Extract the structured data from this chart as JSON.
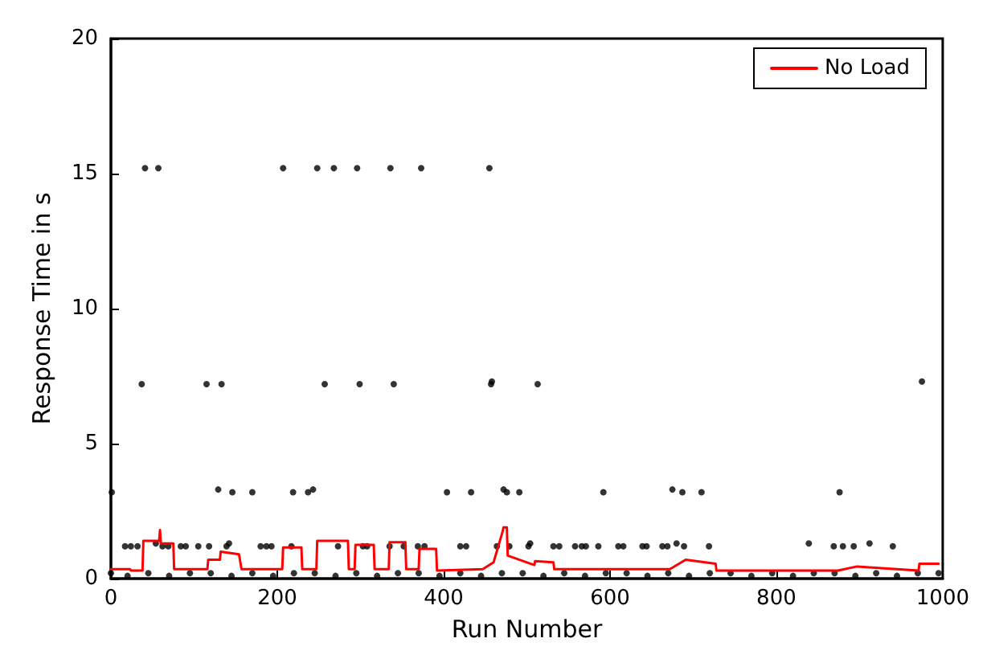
{
  "chart_data": {
    "type": "scatter",
    "xlabel": "Run Number",
    "ylabel": "Response Time in s",
    "xlim": [
      0,
      1000
    ],
    "xticks": [
      0,
      200,
      400,
      600,
      800,
      1000
    ],
    "ylim": [
      0,
      20
    ],
    "yticks": [
      0,
      5,
      10,
      15,
      20
    ],
    "grid": false,
    "legend": "top right",
    "series": [
      {
        "marker": "circle",
        "color": "#000000",
        "x": [
          41,
          57,
          207,
          248,
          268,
          296,
          336,
          373,
          455,
          37,
          115,
          133,
          257,
          299,
          340,
          457,
          458,
          513,
          975,
          1,
          129,
          146,
          170,
          219,
          237,
          243,
          404,
          433,
          472,
          476,
          491,
          592,
          675,
          687,
          710,
          876,
          17,
          24,
          32,
          54,
          62,
          69,
          84,
          90,
          105,
          118,
          139,
          142,
          180,
          187,
          193,
          217,
          273,
          303,
          308,
          335,
          352,
          369,
          377,
          420,
          427,
          464,
          479,
          502,
          504,
          532,
          539,
          558,
          566,
          571,
          586,
          610,
          616,
          639,
          644,
          663,
          669,
          680,
          689,
          719,
          839,
          869,
          880,
          893,
          912,
          940,
          0,
          20,
          45,
          70,
          95,
          120,
          145,
          170,
          195,
          220,
          245,
          270,
          295,
          320,
          345,
          370,
          395,
          420,
          445,
          470,
          495,
          520,
          545,
          570,
          595,
          620,
          645,
          670,
          695,
          720,
          745,
          770,
          795,
          820,
          845,
          870,
          895,
          920,
          945,
          970,
          995
        ],
        "values": [
          15.2,
          15.2,
          15.2,
          15.2,
          15.2,
          15.2,
          15.2,
          15.2,
          15.2,
          7.2,
          7.2,
          7.2,
          7.2,
          7.2,
          7.2,
          7.2,
          7.3,
          7.2,
          7.3,
          3.2,
          3.3,
          3.2,
          3.2,
          3.2,
          3.2,
          3.3,
          3.2,
          3.2,
          3.3,
          3.2,
          3.2,
          3.2,
          3.3,
          3.2,
          3.2,
          3.2,
          1.2,
          1.2,
          1.2,
          1.3,
          1.2,
          1.2,
          1.2,
          1.2,
          1.2,
          1.2,
          1.2,
          1.3,
          1.2,
          1.2,
          1.2,
          1.2,
          1.2,
          1.2,
          1.2,
          1.2,
          1.2,
          1.2,
          1.2,
          1.2,
          1.2,
          1.2,
          1.2,
          1.2,
          1.3,
          1.2,
          1.2,
          1.2,
          1.2,
          1.2,
          1.2,
          1.2,
          1.2,
          1.2,
          1.2,
          1.2,
          1.2,
          1.3,
          1.2,
          1.2,
          1.3,
          1.2,
          1.2,
          1.2,
          1.3,
          1.2,
          0.2,
          0.1,
          0.2,
          0.1,
          0.2,
          0.2,
          0.1,
          0.2,
          0.1,
          0.2,
          0.2,
          0.1,
          0.2,
          0.1,
          0.2,
          0.2,
          0.1,
          0.2,
          0.1,
          0.2,
          0.2,
          0.1,
          0.2,
          0.1,
          0.2,
          0.2,
          0.1,
          0.2,
          0.1,
          0.2,
          0.2,
          0.1,
          0.2,
          0.1,
          0.2,
          0.2,
          0.1,
          0.2,
          0.1,
          0.2,
          0.2
        ]
      },
      {
        "type": "line",
        "name": "No Load",
        "marker": "none",
        "color": "#ff0000",
        "x": [
          0,
          23,
          24,
          38,
          39,
          58,
          59,
          60,
          75,
          76,
          113,
          116,
          117,
          131,
          132,
          154,
          157,
          206,
          207,
          229,
          230,
          247,
          248,
          285,
          286,
          293,
          294,
          316,
          317,
          334,
          335,
          354,
          355,
          370,
          371,
          391,
          392,
          447,
          460,
          471,
          472,
          476,
          477,
          509,
          510,
          532,
          533,
          672,
          691,
          727,
          728,
          874,
          897,
          971,
          972,
          995
        ],
        "values": [
          0.35,
          0.35,
          0.3,
          0.3,
          1.4,
          1.4,
          1.8,
          1.3,
          1.3,
          0.35,
          0.35,
          0.35,
          0.7,
          0.7,
          1.0,
          0.9,
          0.35,
          0.35,
          1.15,
          1.15,
          0.35,
          0.35,
          1.4,
          1.4,
          0.35,
          0.35,
          1.25,
          1.25,
          0.35,
          0.35,
          1.35,
          1.35,
          0.35,
          0.35,
          1.1,
          1.1,
          0.3,
          0.35,
          0.6,
          1.75,
          1.9,
          1.9,
          0.85,
          0.5,
          0.65,
          0.6,
          0.35,
          0.35,
          0.7,
          0.55,
          0.3,
          0.3,
          0.45,
          0.3,
          0.55,
          0.55
        ]
      }
    ]
  }
}
